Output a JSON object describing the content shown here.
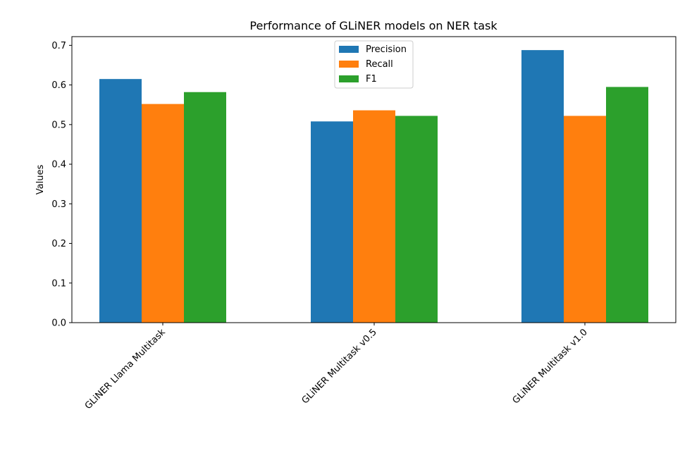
{
  "chart_data": {
    "type": "bar",
    "title": "Performance of GLiNER models on NER task",
    "xlabel": "",
    "ylabel": "Values",
    "categories": [
      "GLiNER Llama Multitask",
      "GLiNER Multitask v0.5",
      "GLiNER Multitask v1.0"
    ],
    "series": [
      {
        "name": "Precision",
        "values": [
          0.615,
          0.508,
          0.688
        ],
        "color": "#1f77b4"
      },
      {
        "name": "Recall",
        "values": [
          0.552,
          0.536,
          0.522
        ],
        "color": "#ff7f0e"
      },
      {
        "name": "F1",
        "values": [
          0.582,
          0.522,
          0.595
        ],
        "color": "#2ca02c"
      }
    ],
    "yticks": [
      "0.0",
      "0.1",
      "0.2",
      "0.3",
      "0.4",
      "0.5",
      "0.6",
      "0.7"
    ],
    "ylim": [
      0,
      0.722
    ],
    "grid": false,
    "legend_position": "top-center"
  }
}
